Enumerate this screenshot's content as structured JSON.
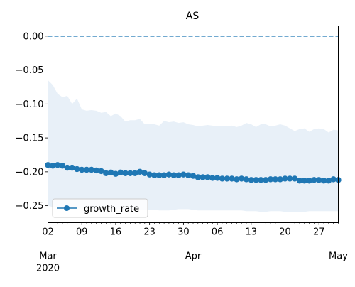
{
  "chart_data": {
    "type": "line",
    "title": "AS",
    "xlabel": "",
    "ylabel": "",
    "ylim": [
      -0.275,
      0.015
    ],
    "yticks": [
      0.0,
      -0.05,
      -0.1,
      -0.15,
      -0.2,
      -0.25
    ],
    "ytick_labels": [
      "0.00",
      "−0.05",
      "−0.10",
      "−0.15",
      "−0.20",
      "−0.25"
    ],
    "xlim": [
      "2020-03-02",
      "2020-05-01"
    ],
    "xtick_major": [
      {
        "date": "2020-03-02",
        "label": "02"
      },
      {
        "date": "2020-03-09",
        "label": "09"
      },
      {
        "date": "2020-03-16",
        "label": "16"
      },
      {
        "date": "2020-03-23",
        "label": "23"
      },
      {
        "date": "2020-03-30",
        "label": "30"
      },
      {
        "date": "2020-04-06",
        "label": "06"
      },
      {
        "date": "2020-04-13",
        "label": "13"
      },
      {
        "date": "2020-04-20",
        "label": "20"
      },
      {
        "date": "2020-04-27",
        "label": "27"
      }
    ],
    "month_labels": [
      {
        "date": "2020-03-01",
        "label": "Mar",
        "sub": "2020"
      },
      {
        "date": "2020-04-01",
        "label": "Apr",
        "sub": ""
      },
      {
        "date": "2020-05-01",
        "label": "May",
        "sub": ""
      }
    ],
    "reference_line": {
      "y": 0.0,
      "style": "dashed"
    },
    "legend": {
      "placement": "lower-left"
    },
    "series": [
      {
        "name": "growth_rate",
        "marker": "circle",
        "x": [
          "2020-03-02",
          "2020-03-03",
          "2020-03-04",
          "2020-03-05",
          "2020-03-06",
          "2020-03-07",
          "2020-03-08",
          "2020-03-09",
          "2020-03-10",
          "2020-03-11",
          "2020-03-12",
          "2020-03-13",
          "2020-03-14",
          "2020-03-15",
          "2020-03-16",
          "2020-03-17",
          "2020-03-18",
          "2020-03-19",
          "2020-03-20",
          "2020-03-21",
          "2020-03-22",
          "2020-03-23",
          "2020-03-24",
          "2020-03-25",
          "2020-03-26",
          "2020-03-27",
          "2020-03-28",
          "2020-03-29",
          "2020-03-30",
          "2020-03-31",
          "2020-04-01",
          "2020-04-02",
          "2020-04-03",
          "2020-04-04",
          "2020-04-05",
          "2020-04-06",
          "2020-04-07",
          "2020-04-08",
          "2020-04-09",
          "2020-04-10",
          "2020-04-11",
          "2020-04-12",
          "2020-04-13",
          "2020-04-14",
          "2020-04-15",
          "2020-04-16",
          "2020-04-17",
          "2020-04-18",
          "2020-04-19",
          "2020-04-20",
          "2020-04-21",
          "2020-04-22",
          "2020-04-23",
          "2020-04-24",
          "2020-04-25",
          "2020-04-26",
          "2020-04-27",
          "2020-04-28",
          "2020-04-29",
          "2020-04-30",
          "2020-05-01"
        ],
        "y": [
          -0.19,
          -0.191,
          -0.19,
          -0.191,
          -0.194,
          -0.194,
          -0.196,
          -0.197,
          -0.197,
          -0.197,
          -0.198,
          -0.199,
          -0.202,
          -0.201,
          -0.203,
          -0.201,
          -0.202,
          -0.202,
          -0.202,
          -0.2,
          -0.202,
          -0.204,
          -0.205,
          -0.205,
          -0.205,
          -0.204,
          -0.205,
          -0.205,
          -0.204,
          -0.205,
          -0.206,
          -0.208,
          -0.208,
          -0.208,
          -0.209,
          -0.209,
          -0.21,
          -0.21,
          -0.21,
          -0.211,
          -0.21,
          -0.211,
          -0.212,
          -0.212,
          -0.212,
          -0.212,
          -0.211,
          -0.211,
          -0.211,
          -0.21,
          -0.21,
          -0.21,
          -0.213,
          -0.213,
          -0.213,
          -0.212,
          -0.212,
          -0.213,
          -0.213,
          -0.211,
          -0.212
        ],
        "lower": [
          -0.25,
          -0.252,
          -0.252,
          -0.253,
          -0.253,
          -0.253,
          -0.254,
          -0.254,
          -0.254,
          -0.254,
          -0.255,
          -0.255,
          -0.255,
          -0.255,
          -0.255,
          -0.255,
          -0.256,
          -0.256,
          -0.256,
          -0.256,
          -0.256,
          -0.256,
          -0.256,
          -0.257,
          -0.257,
          -0.257,
          -0.256,
          -0.255,
          -0.255,
          -0.255,
          -0.256,
          -0.257,
          -0.257,
          -0.257,
          -0.257,
          -0.257,
          -0.257,
          -0.257,
          -0.257,
          -0.257,
          -0.257,
          -0.258,
          -0.258,
          -0.258,
          -0.259,
          -0.259,
          -0.258,
          -0.258,
          -0.258,
          -0.259,
          -0.259,
          -0.259,
          -0.259,
          -0.259,
          -0.258,
          -0.258,
          -0.258,
          -0.258,
          -0.258,
          -0.258,
          -0.258
        ],
        "upper": [
          -0.065,
          -0.072,
          -0.085,
          -0.09,
          -0.088,
          -0.1,
          -0.092,
          -0.108,
          -0.11,
          -0.109,
          -0.11,
          -0.113,
          -0.112,
          -0.118,
          -0.114,
          -0.118,
          -0.126,
          -0.124,
          -0.124,
          -0.122,
          -0.13,
          -0.13,
          -0.13,
          -0.132,
          -0.125,
          -0.127,
          -0.126,
          -0.128,
          -0.127,
          -0.13,
          -0.131,
          -0.133,
          -0.132,
          -0.131,
          -0.132,
          -0.133,
          -0.133,
          -0.133,
          -0.132,
          -0.134,
          -0.132,
          -0.128,
          -0.13,
          -0.134,
          -0.13,
          -0.13,
          -0.133,
          -0.132,
          -0.13,
          -0.132,
          -0.136,
          -0.14,
          -0.137,
          -0.136,
          -0.141,
          -0.137,
          -0.136,
          -0.137,
          -0.142,
          -0.138,
          -0.139
        ]
      }
    ]
  },
  "colors": {
    "line": "#1f77b4",
    "band": "#e8f0f8",
    "reference": "#1f77b4",
    "axis": "#000000"
  }
}
